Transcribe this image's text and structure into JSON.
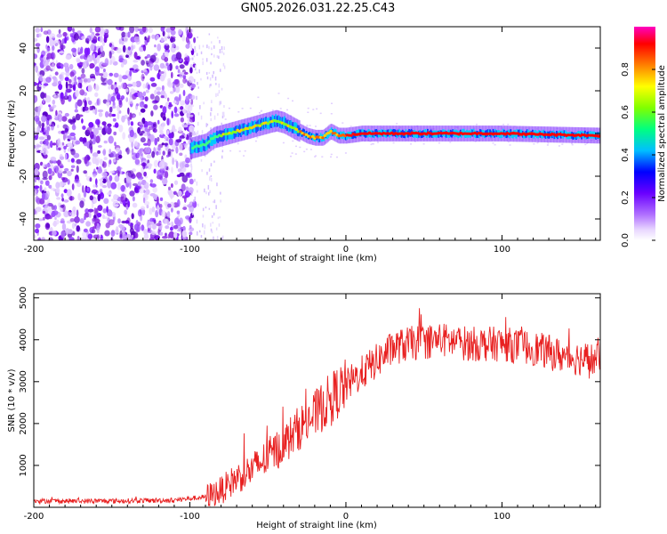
{
  "title": "GN05.2026.031.22.25.C43",
  "chart_data": [
    {
      "type": "heatmap",
      "name": "spectrogram",
      "xlabel": "Height of straight line (km)",
      "ylabel": "Frequency (Hz)",
      "xlim": [
        -200,
        163
      ],
      "ylim": [
        -50,
        50
      ],
      "xticks": [
        -200,
        -100,
        0,
        100
      ],
      "yticks": [
        -40,
        -20,
        0,
        20,
        40
      ],
      "ridge": {
        "description": "main spectral line",
        "x": [
          -100,
          -95,
          -90,
          -85,
          -80,
          -75,
          -70,
          -65,
          -60,
          -55,
          -50,
          -45,
          -40,
          -35,
          -30,
          -25,
          -20,
          -15,
          -10,
          -5,
          0,
          10,
          50,
          100,
          163
        ],
        "y": [
          -7,
          -6,
          -5,
          -2,
          -1,
          0,
          1,
          2,
          3,
          4,
          5,
          6,
          5,
          3,
          1,
          -1,
          -2,
          -2,
          1,
          -1,
          -1,
          0,
          0,
          0,
          -1
        ]
      },
      "colorbar": {
        "label": "Normalized spectral amplitude",
        "range": [
          0,
          1
        ],
        "ticks": [
          "0.0",
          "0.2",
          "0.4",
          "0.6",
          "0.8"
        ],
        "colors": [
          "#ffffff",
          "#d7b4ff",
          "#9b30ff",
          "#6a00ff",
          "#0000ff",
          "#00bfff",
          "#00ff80",
          "#80ff00",
          "#ffff00",
          "#ff8000",
          "#ff0000",
          "#ff00c0"
        ]
      }
    },
    {
      "type": "line",
      "name": "snr",
      "xlabel": "Height of straight line (km)",
      "ylabel": "SNR (10 * v/v)",
      "xlim": [
        -200,
        163
      ],
      "ylim": [
        0,
        5100
      ],
      "xticks": [
        -200,
        -100,
        0,
        100
      ],
      "yticks": [
        1000,
        2000,
        3000,
        4000,
        5000
      ],
      "color": "#e82020",
      "envelope": {
        "x": [
          -200,
          -150,
          -110,
          -90,
          -80,
          -70,
          -60,
          -50,
          -40,
          -30,
          -20,
          -10,
          0,
          10,
          20,
          30,
          40,
          60,
          80,
          100,
          120,
          140,
          163
        ],
        "y": [
          150,
          150,
          170,
          250,
          400,
          700,
          900,
          1200,
          1500,
          1900,
          2200,
          2600,
          2900,
          3200,
          3500,
          3800,
          3900,
          4000,
          3900,
          3900,
          3800,
          3600,
          3500
        ]
      }
    }
  ]
}
